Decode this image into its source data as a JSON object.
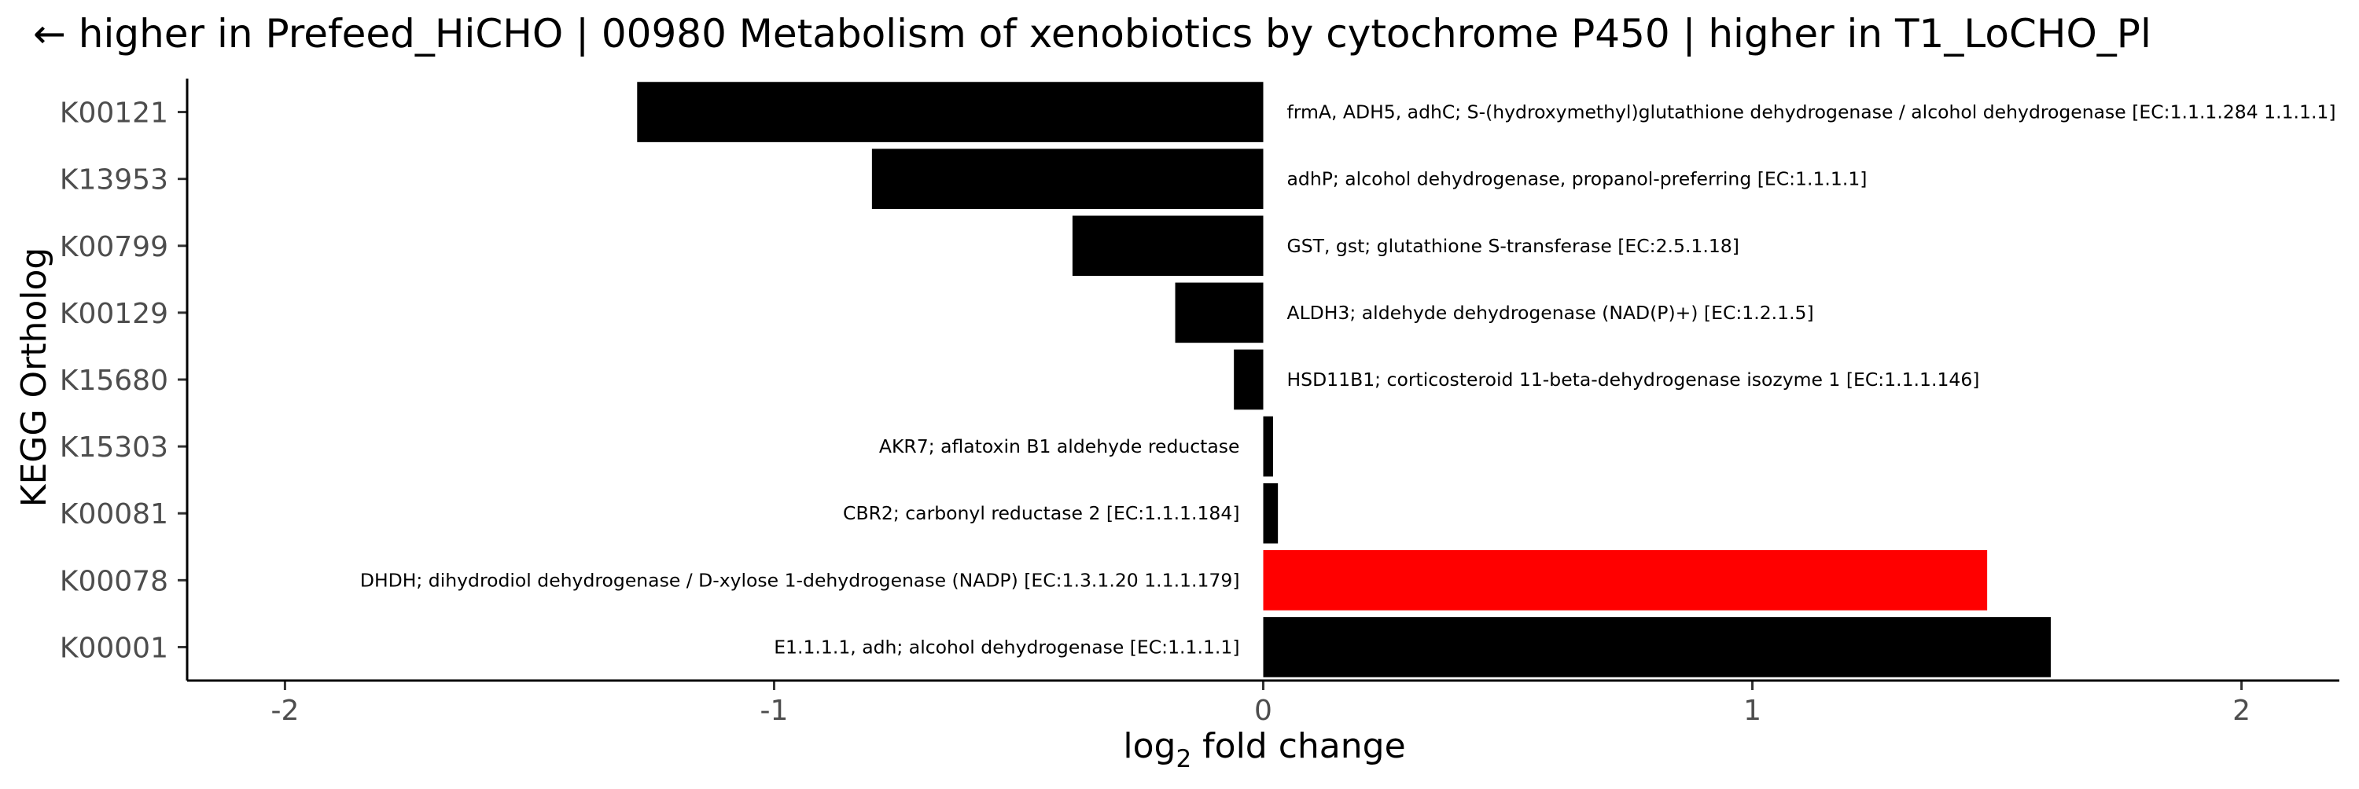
{
  "chart_data": {
    "type": "bar",
    "orientation": "horizontal",
    "title": "← higher in Prefeed_HiCHO | 00980 Metabolism of xenobiotics by cytochrome P450 | higher in T1_LoCHO_Pl",
    "xlabel_main": "log",
    "xlabel_sub": "2",
    "xlabel_tail": " fold change",
    "ylabel": "KEGG Ortholog",
    "xlim": [
      -2.2,
      2.2
    ],
    "xticks": [
      -2,
      -1,
      0,
      1,
      2
    ],
    "xtick_labels": [
      "-2",
      "-1",
      "0",
      "1",
      "2"
    ],
    "grid": false,
    "legend": "none",
    "categories": [
      "K00121",
      "K13953",
      "K00799",
      "K00129",
      "K15680",
      "K15303",
      "K00081",
      "K00078",
      "K00001"
    ],
    "values": [
      -1.28,
      -0.8,
      -0.39,
      -0.18,
      -0.06,
      0.02,
      0.03,
      1.48,
      1.61
    ],
    "bar_colors": [
      "#000000",
      "#000000",
      "#000000",
      "#000000",
      "#000000",
      "#000000",
      "#000000",
      "#ff0000",
      "#000000"
    ],
    "annotations": [
      "frmA, ADH5, adhC; S-(hydroxymethyl)glutathione dehydrogenase / alcohol dehydrogenase [EC:1.1.1.284 1.1.1.1]",
      "adhP; alcohol dehydrogenase, propanol-preferring [EC:1.1.1.1]",
      "GST, gst; glutathione S-transferase [EC:2.5.1.18]",
      "ALDH3; aldehyde dehydrogenase (NAD(P)+) [EC:1.2.1.5]",
      "HSD11B1; corticosteroid 11-beta-dehydrogenase isozyme 1 [EC:1.1.1.146]",
      "AKR7; aflatoxin B1 aldehyde reductase",
      "CBR2; carbonyl reductase 2 [EC:1.1.1.184]",
      "DHDH; dihydrodiol dehydrogenase / D-xylose 1-dehydrogenase (NADP) [EC:1.3.1.20 1.1.1.179]",
      "E1.1.1.1, adh; alcohol dehydrogenase [EC:1.1.1.1]"
    ]
  }
}
